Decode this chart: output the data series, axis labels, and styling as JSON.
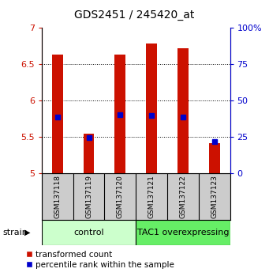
{
  "title": "GDS2451 / 245420_at",
  "samples": [
    "GSM137118",
    "GSM137119",
    "GSM137120",
    "GSM137121",
    "GSM137122",
    "GSM137123"
  ],
  "red_values": [
    6.63,
    5.55,
    6.63,
    6.79,
    6.72,
    5.42
  ],
  "blue_values": [
    5.78,
    5.49,
    5.81,
    5.8,
    5.78,
    5.44
  ],
  "ylim_left": [
    5.0,
    7.0
  ],
  "ylim_right": [
    0,
    100
  ],
  "yticks_left": [
    5.0,
    5.5,
    6.0,
    6.5,
    7.0
  ],
  "ytick_labels_left": [
    "5",
    "5.5",
    "6",
    "6.5",
    "7"
  ],
  "yticks_right": [
    0,
    25,
    50,
    75,
    100
  ],
  "ytick_labels_right": [
    "0",
    "25",
    "50",
    "75",
    "100%"
  ],
  "grid_values": [
    5.5,
    6.0,
    6.5
  ],
  "groups": [
    {
      "label": "control",
      "indices": [
        0,
        1,
        2
      ],
      "color": "#ccffcc"
    },
    {
      "label": "TAC1 overexpressing",
      "indices": [
        3,
        4,
        5
      ],
      "color": "#66ee66"
    }
  ],
  "bar_color": "#cc1100",
  "blue_color": "#0000cc",
  "bar_bottom": 5.0,
  "bar_width": 0.35,
  "legend_red_label": "transformed count",
  "legend_blue_label": "percentile rank within the sample",
  "strain_label": "strain",
  "left_tick_color": "#cc1100",
  "right_tick_color": "#0000cc",
  "title_fontsize": 10,
  "tick_fontsize": 8,
  "label_fontsize": 8,
  "sample_fontsize": 6.5,
  "group_label_fontsize": 8,
  "legend_fontsize": 7.5,
  "sample_box_color": "#cccccc"
}
